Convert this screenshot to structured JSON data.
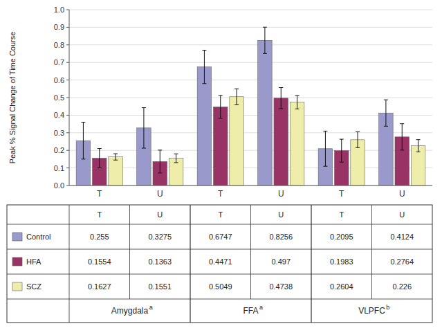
{
  "chart_data": {
    "type": "bar",
    "categories": [
      "T",
      "U",
      "T",
      "U",
      "T",
      "U"
    ],
    "groups": [
      "Amygdala",
      "FFA",
      "VLPFC"
    ],
    "group_superscripts": [
      "a",
      "a",
      "b"
    ],
    "series": [
      {
        "name": "Control",
        "color": "#9999cc",
        "values": [
          0.255,
          0.3275,
          0.6747,
          0.8256,
          0.2095,
          0.4124
        ],
        "errors": [
          0.105,
          0.115,
          0.095,
          0.075,
          0.1,
          0.075
        ]
      },
      {
        "name": "HFA",
        "color": "#993366",
        "values": [
          0.1554,
          0.1363,
          0.4471,
          0.497,
          0.1983,
          0.2764
        ],
        "errors": [
          0.055,
          0.065,
          0.065,
          0.06,
          0.065,
          0.075
        ]
      },
      {
        "name": "SCZ",
        "color": "#eeeeaa",
        "values": [
          0.1627,
          0.1551,
          0.5049,
          0.4738,
          0.2604,
          0.226
        ],
        "errors": [
          0.018,
          0.025,
          0.045,
          0.038,
          0.045,
          0.035
        ]
      }
    ],
    "y_label": "Peak % Signal Change of Time Course",
    "ylim": [
      0,
      1.0
    ],
    "yticks": [
      {
        "value": 0,
        "label": "0.0"
      },
      0.1,
      0.2,
      0.3,
      0.4,
      0.5,
      0.6,
      0.7,
      0.8,
      0.9,
      {
        "value": 1,
        "label": "1.0"
      }
    ],
    "grid": true
  }
}
